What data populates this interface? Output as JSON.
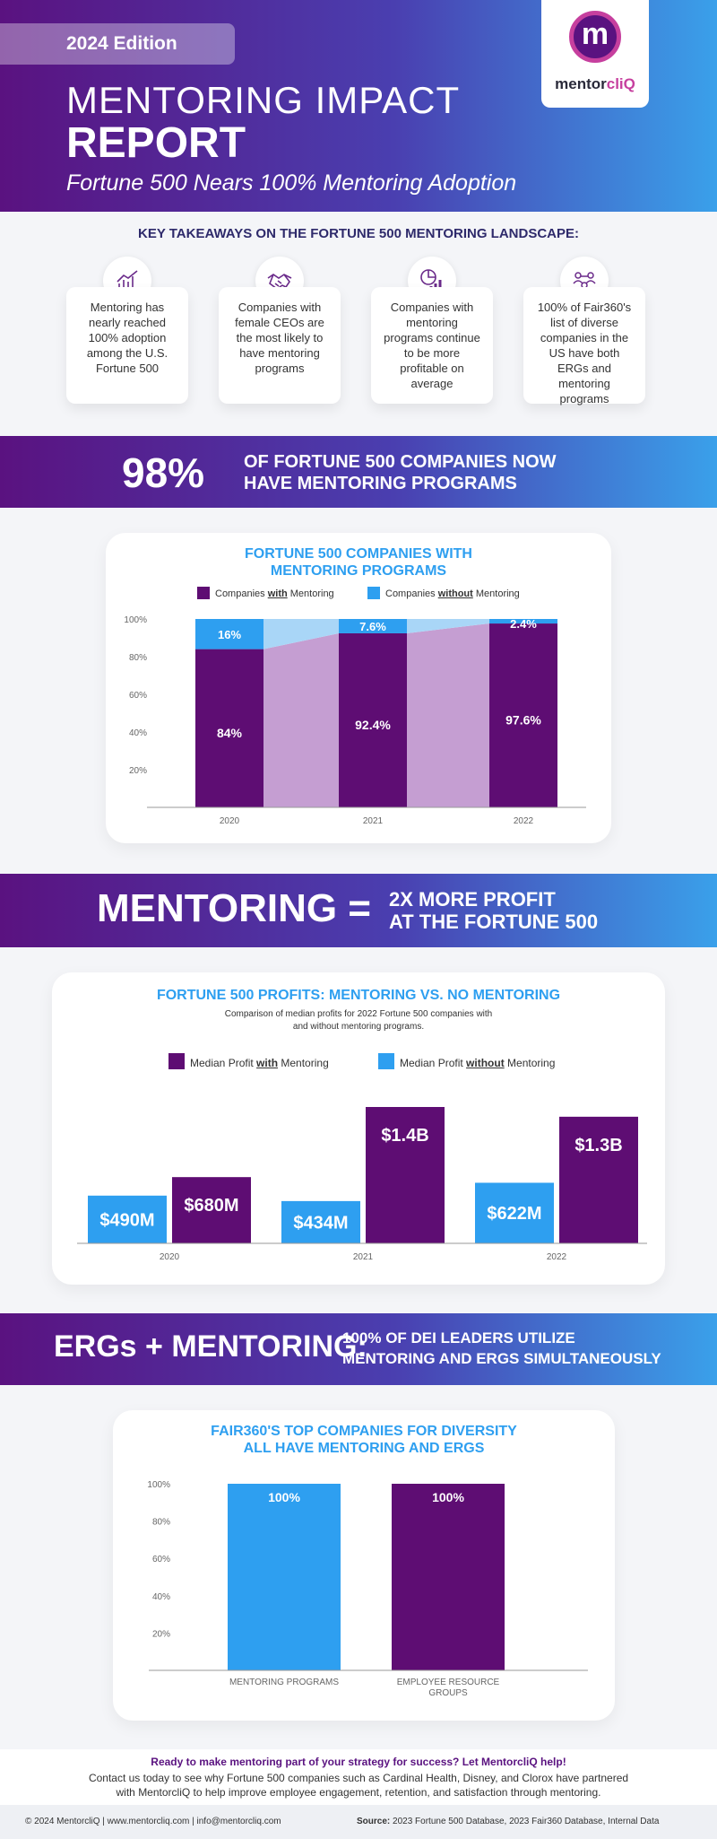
{
  "header": {
    "edition": "2024 Edition",
    "title_line1": "MENTORING IMPACT",
    "title_line2": "REPORT",
    "subtitle": "Fortune 500 Nears 100% Mentoring Adoption",
    "logo_text_a": "mentor",
    "logo_text_b": "cliQ",
    "logo_glyph": "m"
  },
  "takeaways": {
    "title": "KEY TAKEAWAYS ON THE FORTUNE 500 MENTORING LANDSCAPE:",
    "cards": [
      {
        "icon": "growth-chart-icon",
        "text": "Mentoring has nearly reached 100% adoption among the U.S. Fortune 500"
      },
      {
        "icon": "handshake-icon",
        "text": "Companies with female CEOs are the most likely to have mentoring programs"
      },
      {
        "icon": "profit-chart-icon",
        "text": "Companies with mentoring programs continue to be more profitable on average"
      },
      {
        "icon": "people-network-icon",
        "text": "100% of Fair360's list of diverse companies in the US have both ERGs and mentoring programs"
      }
    ]
  },
  "band_98": {
    "big": "98%",
    "line1": "OF FORTUNE 500 COMPANIES NOW",
    "line2": "HAVE MENTORING PROGRAMS"
  },
  "chart1": {
    "title_line1": "FORTUNE 500 COMPANIES WITH",
    "title_line2": "MENTORING PROGRAMS",
    "legend_with_pre": "Companies ",
    "legend_with_em": "with",
    "legend_with_post": " Mentoring",
    "legend_without_pre": "Companies ",
    "legend_without_em": "without",
    "legend_without_post": " Mentoring"
  },
  "band_mentoring": {
    "big": "MENTORING =",
    "line1": "2X MORE PROFIT",
    "line2": "AT THE FORTUNE 500"
  },
  "chart2": {
    "title": "FORTUNE 500 PROFITS: MENTORING VS. NO MENTORING",
    "desc_line1": "Comparison of median profits for 2022 Fortune 500 companies with",
    "desc_line2": "and without mentoring programs.",
    "legend_with_pre": "Median Profit ",
    "legend_with_em": "with",
    "legend_with_post": " Mentoring",
    "legend_without_pre": "Median Profit ",
    "legend_without_em": "without",
    "legend_without_post": " Mentoring"
  },
  "band_ergs": {
    "big": "ERGs + MENTORING:",
    "line1": "100% OF DEI LEADERS UTILIZE",
    "line2": "MENTORING AND ERGS SIMULTANEOUSLY"
  },
  "chart3": {
    "title_line1": "FAIR360'S TOP COMPANIES FOR DIVERSITY",
    "title_line2": "ALL HAVE MENTORING AND ERGS"
  },
  "chart_data": [
    {
      "type": "bar",
      "title": "FORTUNE 500 COMPANIES WITH MENTORING PROGRAMS",
      "categories": [
        "2020",
        "2021",
        "2022"
      ],
      "series": [
        {
          "name": "Companies with Mentoring",
          "values": [
            84,
            92.4,
            97.6
          ],
          "labels": [
            "84%",
            "92.4%",
            "97.6%"
          ],
          "color": "#5e0d73"
        },
        {
          "name": "Companies without Mentoring",
          "values": [
            16,
            7.6,
            2.4
          ],
          "labels": [
            "16%",
            "7.6%",
            "2.4%"
          ],
          "color": "#2e9ff0"
        }
      ],
      "stacked": true,
      "ylim": [
        0,
        100
      ],
      "yticks": [
        "20%",
        "40%",
        "60%",
        "80%",
        "100%"
      ],
      "yticks_values": [
        20,
        40,
        60,
        80,
        100
      ]
    },
    {
      "type": "bar",
      "title": "FORTUNE 500 PROFITS: MENTORING VS. NO MENTORING",
      "categories": [
        "2020",
        "2021",
        "2022"
      ],
      "series": [
        {
          "name": "Median Profit without Mentoring",
          "values": [
            490,
            434,
            622
          ],
          "labels": [
            "$490M",
            "$434M",
            "$622M"
          ],
          "color": "#2e9ff0"
        },
        {
          "name": "Median Profit with Mentoring",
          "values": [
            680,
            1400,
            1300
          ],
          "labels": [
            "$680M",
            "$1.4B",
            "$1.3B"
          ],
          "color": "#5e0d73"
        }
      ],
      "ylim": [
        0,
        1400
      ]
    },
    {
      "type": "bar",
      "title": "FAIR360'S TOP COMPANIES FOR DIVERSITY ALL HAVE MENTORING AND ERGS",
      "categories": [
        "MENTORING PROGRAMS",
        "EMPLOYEE RESOURCE GROUPS"
      ],
      "category_lines": [
        [
          "MENTORING PROGRAMS"
        ],
        [
          "EMPLOYEE RESOURCE",
          "GROUPS"
        ]
      ],
      "values": [
        100,
        100
      ],
      "labels": [
        "100%",
        "100%"
      ],
      "colors": [
        "#2e9ff0",
        "#5e0d73"
      ],
      "ylim": [
        0,
        100
      ],
      "yticks": [
        "20%",
        "40%",
        "60%",
        "80%",
        "100%"
      ],
      "yticks_values": [
        20,
        40,
        60,
        80,
        100
      ]
    }
  ],
  "cta": {
    "headline": "Ready to make mentoring part of your strategy for success? Let MentorcliQ help!",
    "body_line1": "Contact us today to see why Fortune 500 companies such as Cardinal Health, Disney, and Clorox have partnered",
    "body_line2": "with MentorcliQ to help improve employee engagement, retention, and satisfaction through mentoring."
  },
  "footer": {
    "left": "© 2024 MentorcliQ   |   www.mentorcliq.com   |   info@mentorcliq.com",
    "source_label": "Source:",
    "source_text": " 2023 Fortune 500 Database, 2023 Fair360 Database, Internal Data"
  },
  "colors": {
    "purple": "#5e0d73",
    "blue": "#2e9ff0",
    "light_purple_area": "#c59ed2",
    "light_blue_area": "#a9d6f7",
    "navy_title": "#2e2a6b",
    "logo_pink": "#c63f9e"
  }
}
